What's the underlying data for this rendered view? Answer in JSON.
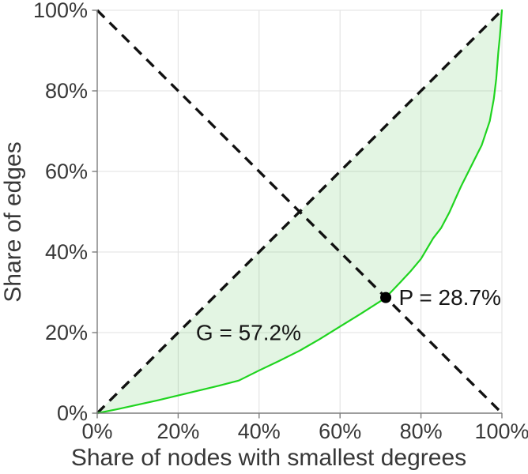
{
  "figure": {
    "background": "#ffffff",
    "description": "Lorenz curve of edge shares vs node shares with Gini coefficient annotation"
  },
  "colors": {
    "curve": "#1fd41f",
    "area_fill": "#00a800",
    "area_opacity": 0.11,
    "dashed_line": "#111111",
    "grid": "#e2e2e2",
    "axis": "#7d7d7d",
    "text": "#383838",
    "point": "#000000"
  },
  "chart_data": {
    "type": "line",
    "title": "",
    "xlabel": "Share of nodes with smallest degrees",
    "ylabel": "Share of edges",
    "xlim": [
      0,
      100
    ],
    "ylim": [
      0,
      100
    ],
    "grid": true,
    "legend": false,
    "x_ticks": [
      0,
      20,
      40,
      60,
      80,
      100
    ],
    "x_tick_labels": [
      "0%",
      "20%",
      "40%",
      "60%",
      "80%",
      "100%"
    ],
    "y_ticks": [
      0,
      20,
      40,
      60,
      80,
      100
    ],
    "y_tick_labels": [
      "0%",
      "20%",
      "40%",
      "60%",
      "80%",
      "100%"
    ],
    "series": [
      {
        "name": "lorenz-curve",
        "x": [
          0,
          5,
          10,
          15,
          20,
          25,
          30,
          35,
          40,
          45,
          50,
          55,
          60,
          65,
          70,
          71.3,
          75,
          77.5,
          80,
          83,
          85,
          87,
          89,
          90,
          92,
          94,
          95,
          96,
          97,
          98,
          98.6,
          99.1,
          99.5,
          100
        ],
        "y": [
          0,
          1.0,
          2.1,
          3.2,
          4.4,
          5.6,
          6.8,
          8.1,
          10.6,
          13.0,
          15.5,
          18.4,
          21.5,
          24.6,
          27.8,
          28.7,
          32.6,
          35.3,
          38.3,
          43.4,
          46.0,
          49.8,
          54.3,
          56.5,
          60.5,
          64.5,
          66.5,
          69.5,
          72.5,
          78.0,
          83.0,
          89.5,
          93.5,
          100
        ],
        "filled_to_diagonal": true
      }
    ],
    "reference_lines": [
      {
        "name": "equality-diagonal",
        "from": [
          0,
          0
        ],
        "to": [
          100,
          100
        ],
        "style": "dashed"
      },
      {
        "name": "anti-diagonal",
        "from": [
          0,
          100
        ],
        "to": [
          100,
          0
        ],
        "style": "dashed"
      }
    ],
    "point_marker": {
      "x": 71.3,
      "y": 28.7
    },
    "annotations": [
      {
        "id": "gini-value",
        "text": "G = 57.2%",
        "x": 24.4,
        "y": 20,
        "anchor": "start"
      },
      {
        "id": "p-value",
        "text": "P = 28.7%",
        "x": 74.5,
        "y": 28.7,
        "anchor": "start"
      }
    ]
  }
}
